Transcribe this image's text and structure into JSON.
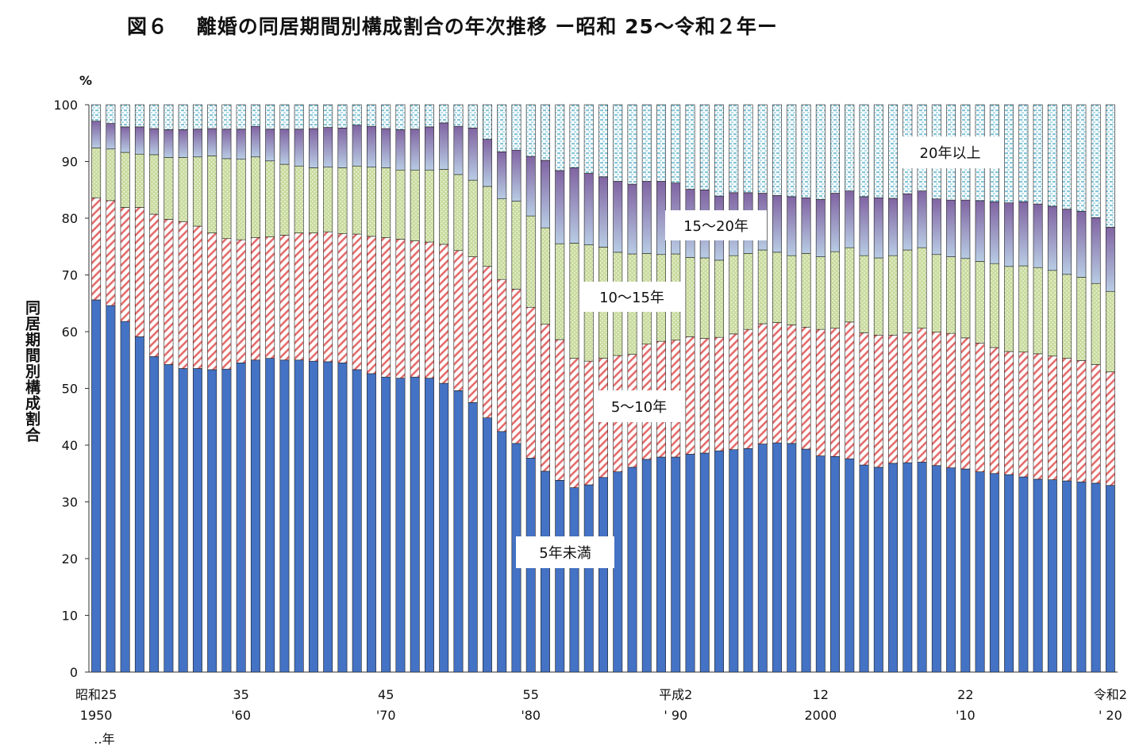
{
  "title": "図６　 離婚の同居期間別構成割合の年次推移 ー昭和 25〜令和２年ー",
  "unit_label": "%",
  "y_axis_label": "同居期間別構成割合",
  "year_unit_note": "‥年",
  "chart_data": {
    "type": "bar",
    "stacked": true,
    "title": "離婚の同居期間別構成割合の年次推移 ー昭和 25〜令和２年ー",
    "xlabel": "",
    "ylabel": "同居期間別構成割合",
    "ylim": [
      0,
      100
    ],
    "yticks": [
      0,
      10,
      20,
      30,
      40,
      50,
      60,
      70,
      80,
      90,
      100
    ],
    "categories": [
      1950,
      1951,
      1952,
      1953,
      1954,
      1955,
      1956,
      1957,
      1958,
      1959,
      1960,
      1961,
      1962,
      1963,
      1964,
      1965,
      1966,
      1967,
      1968,
      1969,
      1970,
      1971,
      1972,
      1973,
      1974,
      1975,
      1976,
      1977,
      1978,
      1979,
      1980,
      1981,
      1982,
      1983,
      1984,
      1985,
      1986,
      1987,
      1988,
      1989,
      1990,
      1991,
      1992,
      1993,
      1994,
      1995,
      1996,
      1997,
      1998,
      1999,
      2000,
      2001,
      2002,
      2003,
      2004,
      2005,
      2006,
      2007,
      2008,
      2009,
      2010,
      2011,
      2012,
      2013,
      2014,
      2015,
      2016,
      2017,
      2018,
      2019,
      2020
    ],
    "x_tick_labels": [
      {
        "year": 1950,
        "line1": "昭和25",
        "line2": "1950"
      },
      {
        "year": 1960,
        "line1": "35",
        "line2": "'60"
      },
      {
        "year": 1970,
        "line1": "45",
        "line2": "'70"
      },
      {
        "year": 1980,
        "line1": "55",
        "line2": "'80"
      },
      {
        "year": 1990,
        "line1": "平成2",
        "line2": "' 90"
      },
      {
        "year": 2000,
        "line1": "12",
        "line2": "2000"
      },
      {
        "year": 2010,
        "line1": "22",
        "line2": "'10"
      },
      {
        "year": 2020,
        "line1": "令和2",
        "line2": "' 20"
      }
    ],
    "series": [
      {
        "name": "5年未満",
        "color": "#4472C4",
        "pattern": "solid",
        "values": [
          65.6,
          64.6,
          61.8,
          59.1,
          55.6,
          54.2,
          53.5,
          53.5,
          53.3,
          53.4,
          54.5,
          55.0,
          55.3,
          55.0,
          55.0,
          54.8,
          54.7,
          54.5,
          53.3,
          52.6,
          52.0,
          51.8,
          52.0,
          51.8,
          50.9,
          49.6,
          47.5,
          44.8,
          42.4,
          40.3,
          37.7,
          35.4,
          33.8,
          32.5,
          33.0,
          34.3,
          35.3,
          36.1,
          37.5,
          37.9,
          37.9,
          38.4,
          38.6,
          39.0,
          39.2,
          39.4,
          40.2,
          40.4,
          40.3,
          39.3,
          38.1,
          38.0,
          37.6,
          36.5,
          36.1,
          36.8,
          36.9,
          37.0,
          36.4,
          36.0,
          35.8,
          35.3,
          35.0,
          34.8,
          34.4,
          34.0,
          33.9,
          33.7,
          33.5,
          33.3,
          32.9
        ]
      },
      {
        "name": "5〜10年",
        "color": "#E46C6C",
        "pattern": "hatch",
        "values": [
          18.0,
          18.5,
          20.1,
          22.8,
          25.1,
          25.6,
          25.9,
          25.1,
          24.1,
          23.0,
          21.7,
          21.6,
          21.4,
          22.0,
          22.4,
          22.6,
          22.9,
          22.8,
          23.9,
          24.2,
          24.6,
          24.5,
          24.0,
          24.0,
          24.5,
          24.7,
          25.7,
          26.7,
          26.8,
          27.2,
          26.6,
          25.9,
          24.8,
          22.8,
          21.8,
          21.0,
          20.5,
          19.9,
          20.3,
          20.4,
          20.6,
          20.7,
          20.2,
          20.0,
          20.4,
          21.0,
          21.2,
          21.2,
          20.9,
          21.5,
          22.3,
          22.6,
          24.1,
          23.3,
          23.3,
          22.6,
          22.9,
          23.6,
          23.5,
          23.7,
          23.1,
          22.7,
          22.2,
          21.7,
          22.0,
          22.1,
          21.8,
          21.6,
          21.4,
          20.9,
          20.0
        ]
      },
      {
        "name": "10〜15年",
        "color": "#9BBB59",
        "pattern": "dots",
        "values": [
          8.8,
          9.1,
          9.7,
          9.4,
          10.5,
          10.9,
          11.3,
          12.2,
          13.6,
          14.1,
          14.2,
          14.2,
          13.4,
          12.5,
          11.8,
          11.5,
          11.4,
          11.6,
          12.0,
          12.2,
          12.3,
          12.2,
          12.5,
          12.7,
          13.2,
          13.4,
          13.5,
          14.1,
          14.2,
          15.5,
          16.1,
          17.0,
          16.9,
          20.3,
          20.5,
          19.6,
          18.2,
          17.7,
          16.0,
          15.3,
          15.2,
          14.0,
          14.2,
          13.6,
          13.8,
          13.4,
          13.0,
          12.4,
          12.2,
          13.0,
          12.8,
          13.5,
          13.1,
          13.6,
          13.6,
          14.0,
          14.6,
          14.2,
          13.7,
          13.5,
          14.0,
          14.4,
          14.8,
          15.0,
          15.2,
          15.2,
          15.1,
          14.8,
          14.7,
          14.3,
          14.2
        ]
      },
      {
        "name": "15〜20年",
        "color": "#8064A2",
        "pattern": "gradient",
        "values": [
          4.7,
          4.5,
          4.5,
          4.8,
          4.6,
          4.9,
          4.9,
          4.9,
          4.8,
          5.2,
          5.3,
          5.4,
          5.6,
          6.2,
          6.5,
          6.9,
          7.0,
          7.0,
          7.2,
          7.2,
          6.9,
          7.1,
          7.2,
          7.6,
          8.2,
          8.5,
          9.2,
          8.3,
          8.3,
          9.0,
          10.5,
          11.9,
          12.9,
          13.3,
          12.6,
          12.4,
          12.5,
          12.3,
          12.7,
          12.9,
          12.5,
          12.0,
          12.0,
          11.3,
          11.1,
          10.7,
          10.0,
          10.0,
          10.4,
          9.8,
          10.1,
          10.3,
          10.0,
          10.4,
          10.6,
          10.1,
          9.9,
          10.0,
          9.8,
          10.0,
          10.3,
          10.7,
          10.9,
          11.2,
          11.3,
          11.2,
          11.3,
          11.5,
          11.6,
          11.6,
          11.3
        ]
      },
      {
        "name": "20年以上",
        "color": "#B7DEE8",
        "pattern": "dashed",
        "values": [
          2.9,
          3.3,
          3.9,
          3.9,
          4.2,
          4.4,
          4.4,
          4.3,
          4.2,
          4.3,
          4.3,
          3.8,
          4.3,
          4.3,
          4.3,
          4.2,
          4.0,
          4.1,
          3.6,
          3.8,
          4.2,
          4.4,
          4.3,
          3.9,
          3.2,
          3.8,
          4.1,
          6.1,
          8.3,
          8.0,
          9.1,
          9.8,
          11.6,
          11.1,
          12.1,
          12.7,
          13.5,
          14.0,
          13.5,
          13.5,
          13.8,
          14.9,
          15.0,
          16.1,
          15.5,
          15.5,
          15.6,
          16.0,
          16.2,
          16.4,
          16.7,
          15.6,
          15.2,
          16.2,
          16.4,
          16.5,
          15.7,
          15.2,
          16.6,
          16.8,
          16.8,
          16.9,
          17.1,
          17.3,
          17.1,
          17.5,
          17.9,
          18.4,
          18.8,
          19.9,
          21.6
        ]
      }
    ],
    "annotations": [
      {
        "text": "20年以上",
        "series": "20年以上"
      },
      {
        "text": "15〜20年",
        "series": "15〜20年"
      },
      {
        "text": "10〜15年",
        "series": "10〜15年"
      },
      {
        "text": "5〜10年",
        "series": "5〜10年"
      },
      {
        "text": "5年未満",
        "series": "5年未満"
      }
    ]
  }
}
